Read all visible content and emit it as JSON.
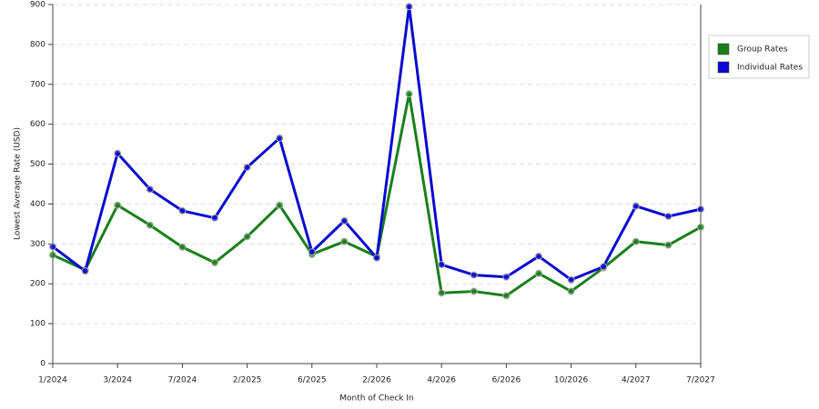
{
  "chart_data": {
    "type": "line",
    "x_label": "Month of Check In",
    "y_label": "Lowest Average Rate (USD)",
    "categories": [
      "1/2024",
      null,
      "3/2024",
      null,
      "7/2024",
      null,
      "2/2025",
      null,
      "6/2025",
      null,
      "2/2026",
      null,
      "4/2026",
      null,
      "6/2026",
      null,
      "10/2026",
      null,
      "4/2027",
      null,
      "7/2027"
    ],
    "series": [
      {
        "name": "Group Rates",
        "color": "#1a7f1a",
        "values": [
          272,
          235,
          397,
          347,
          292,
          253,
          318,
          397,
          274,
          306,
          268,
          676,
          177,
          181,
          170,
          226,
          181,
          240,
          306,
          297,
          342
        ]
      },
      {
        "name": "Individual Rates",
        "color": "#0a0ad0",
        "values": [
          293,
          232,
          527,
          437,
          383,
          365,
          492,
          565,
          280,
          358,
          265,
          895,
          248,
          222,
          217,
          269,
          210,
          243,
          395,
          369,
          387
        ]
      }
    ],
    "ylim": [
      0,
      900
    ],
    "yticks": [
      0,
      100,
      200,
      300,
      400,
      500,
      600,
      700,
      800,
      900
    ],
    "grid": true
  }
}
